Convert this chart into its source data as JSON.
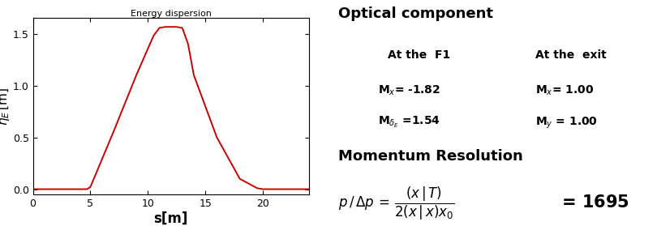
{
  "title": "Energy dispersion",
  "xlabel": "s[m]",
  "ylabel_italic": "η",
  "xlim": [
    0,
    24
  ],
  "ylim": [
    -0.05,
    1.65
  ],
  "yticks": [
    0.0,
    0.5,
    1.0,
    1.5
  ],
  "xticks": [
    0,
    5,
    10,
    15,
    20
  ],
  "line_color": "#cc0000",
  "curve_x": [
    0.0,
    4.7,
    5.0,
    7.0,
    9.0,
    10.5,
    11.0,
    11.5,
    12.0,
    12.5,
    13.0,
    13.5,
    14.0,
    16.0,
    18.0,
    19.5,
    20.0,
    20.3,
    24.0
  ],
  "curve_y": [
    0.0,
    0.0,
    0.02,
    0.55,
    1.1,
    1.48,
    1.555,
    1.565,
    1.565,
    1.565,
    1.555,
    1.4,
    1.1,
    0.5,
    0.1,
    0.01,
    0.0,
    0.0,
    0.0
  ],
  "bg_color": "#ffffff"
}
